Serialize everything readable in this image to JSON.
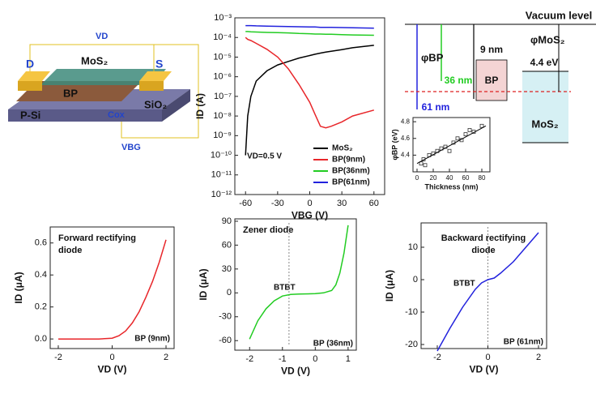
{
  "device": {
    "labels": [
      "VD",
      "D",
      "MoS₂",
      "S",
      "BP",
      "SiO₂",
      "P-Si",
      "Cox",
      "VBG"
    ]
  },
  "band_diagram": {
    "vacuum": "Vacuum level",
    "phi_bp": "φBP",
    "phi_mos2": "φMoS₂",
    "t9": "9 nm",
    "t36": "36 nm",
    "t61": "61 nm",
    "bp": "BP",
    "ev": "4.4 eV",
    "mos2": "MoS₂"
  },
  "chart_data": [
    {
      "type": "line",
      "log_y": true,
      "xlabel": "VBG (V)",
      "ylabel": "ID (A)",
      "x": [
        -60,
        -58,
        -55,
        -50,
        -40,
        -30,
        -20,
        -10,
        0,
        5,
        10,
        15,
        20,
        30,
        40,
        60
      ],
      "series": [
        {
          "name": "MoS₂",
          "color": "#000000",
          "values": [
            1e-10,
            1e-08,
            1e-07,
            6e-07,
            2e-06,
            4e-06,
            6e-06,
            9e-06,
            1.2e-05,
            1.4e-05,
            1.6e-05,
            1.8e-05,
            2e-05,
            2.4e-05,
            3e-05,
            4e-05
          ]
        },
        {
          "name": "BP(9nm)",
          "color": "#e8262a",
          "values": [
            0.0001,
            8e-05,
            7e-05,
            5e-05,
            2.5e-05,
            1e-05,
            2.5e-06,
            4e-07,
            5e-08,
            1.2e-08,
            3e-09,
            2.5e-09,
            3e-09,
            5e-09,
            1e-08,
            2e-08
          ]
        },
        {
          "name": "BP(36nm)",
          "color": "#22cc22",
          "values": [
            0.0002,
            0.0002,
            0.000195,
            0.00019,
            0.00018,
            0.000175,
            0.00017,
            0.00016,
            0.000155,
            0.00015,
            0.00015,
            0.000145,
            0.000145,
            0.00014,
            0.000135,
            0.00013
          ]
        },
        {
          "name": "BP(61nm)",
          "color": "#2222dd",
          "values": [
            0.0004,
            0.0004,
            0.0004,
            0.00039,
            0.00038,
            0.00037,
            0.00036,
            0.00035,
            0.00034,
            0.00034,
            0.00033,
            0.00033,
            0.00033,
            0.00032,
            0.00031,
            0.0003
          ]
        }
      ],
      "xlim": [
        -70,
        70
      ],
      "xticks": [
        -60,
        -30,
        0,
        30,
        60
      ],
      "ylim": [
        1e-12,
        0.001
      ],
      "yticks": [
        {
          "value": 0.001,
          "label": "10⁻³"
        },
        {
          "value": 0.0001,
          "label": "10⁻⁴"
        },
        {
          "value": 1e-05,
          "label": "10⁻⁵"
        },
        {
          "value": 1e-06,
          "label": "10⁻⁶"
        },
        {
          "value": 1e-07,
          "label": "10⁻⁷"
        },
        {
          "value": 1e-08,
          "label": "10⁻⁸"
        },
        {
          "value": 1e-09,
          "label": "10⁻⁹"
        },
        {
          "value": 1e-10,
          "label": "10⁻¹⁰"
        },
        {
          "value": 1e-11,
          "label": "10⁻¹¹"
        },
        {
          "value": 1e-12,
          "label": "10⁻¹²"
        }
      ],
      "legend": "lower right",
      "annotations": [
        "VD=0.5 V"
      ]
    },
    {
      "type": "scatter",
      "xlabel": "Thickness (nm)",
      "ylabel": "φBP (eV)",
      "x": [
        5,
        8,
        10,
        15,
        20,
        25,
        30,
        35,
        40,
        45,
        50,
        55,
        60,
        65,
        70,
        80
      ],
      "values": [
        4.3,
        4.35,
        4.28,
        4.4,
        4.42,
        4.45,
        4.48,
        4.5,
        4.45,
        4.55,
        4.6,
        4.58,
        4.65,
        4.7,
        4.68,
        4.75
      ],
      "color": "#333333",
      "trendline": {
        "x": [
          0,
          85
        ],
        "values": [
          4.3,
          4.75
        ]
      },
      "xlim": [
        -5,
        90
      ],
      "xticks": [
        0,
        20,
        40,
        60,
        80
      ],
      "ylim": [
        4.2,
        4.85
      ],
      "yticks": [
        4.4,
        4.6,
        4.8
      ]
    },
    {
      "type": "line",
      "title": [
        "Forward rectifying",
        "diode"
      ],
      "xlabel": "VD (V)",
      "ylabel": "ID (μA)",
      "x": [
        -2,
        -1.5,
        -1,
        -0.5,
        0,
        0.25,
        0.5,
        0.75,
        1,
        1.25,
        1.5,
        1.75,
        2
      ],
      "series": [
        {
          "color": "#e8262a",
          "values": [
            0,
            0,
            0,
            0,
            0.005,
            0.02,
            0.05,
            0.1,
            0.17,
            0.26,
            0.36,
            0.48,
            0.62
          ]
        }
      ],
      "xlim": [
        -2.3,
        2.3
      ],
      "xticks": [
        -2,
        0,
        2
      ],
      "ylim": [
        -0.06,
        0.7
      ],
      "yticks": [
        {
          "value": 0,
          "label": "0.0"
        },
        0.2,
        0.4,
        0.6
      ],
      "annotations": [
        "BP (9nm)"
      ]
    },
    {
      "type": "line",
      "title": [
        "Zener diode"
      ],
      "xlabel": "VD (V)",
      "ylabel": "ID (μA)",
      "x": [
        -2,
        -1.75,
        -1.5,
        -1.25,
        -1,
        -0.75,
        -0.5,
        0,
        0.25,
        0.5,
        0.625,
        0.75,
        0.875,
        1
      ],
      "series": [
        {
          "color": "#22cc22",
          "values": [
            -58,
            -35,
            -20,
            -10,
            -4,
            -2,
            -1.5,
            -1,
            0,
            3,
            10,
            25,
            50,
            85
          ]
        }
      ],
      "xlim": [
        -2.45,
        1.25
      ],
      "xticks": [
        -2,
        -1,
        0,
        1
      ],
      "ylim": [
        -72,
        93
      ],
      "yticks": [
        -60,
        -30,
        0,
        30,
        60,
        90
      ],
      "vline": -0.8,
      "annotations": [
        "BTBT",
        "BP (36nm)"
      ]
    },
    {
      "type": "line",
      "title": [
        "Backward rectifying",
        "diode"
      ],
      "xlabel": "VD (V)",
      "ylabel": "ID (μA)",
      "x": [
        -2,
        -1.5,
        -1,
        -0.5,
        -0.25,
        0,
        0.25,
        0.5,
        1,
        1.5,
        2
      ],
      "series": [
        {
          "color": "#2222dd",
          "values": [
            -22,
            -15,
            -8.5,
            -3,
            -1,
            0,
            0.5,
            2,
            5.5,
            10,
            14.5
          ]
        }
      ],
      "xlim": [
        -2.64,
        2.32
      ],
      "xticks": [
        -2,
        0,
        2
      ],
      "ylim": [
        -21.25,
        17.5
      ],
      "yticks": [
        -20,
        -10,
        0,
        10
      ],
      "vline": 0,
      "annotations": [
        "BTBT",
        "BP (61nm)"
      ]
    }
  ]
}
